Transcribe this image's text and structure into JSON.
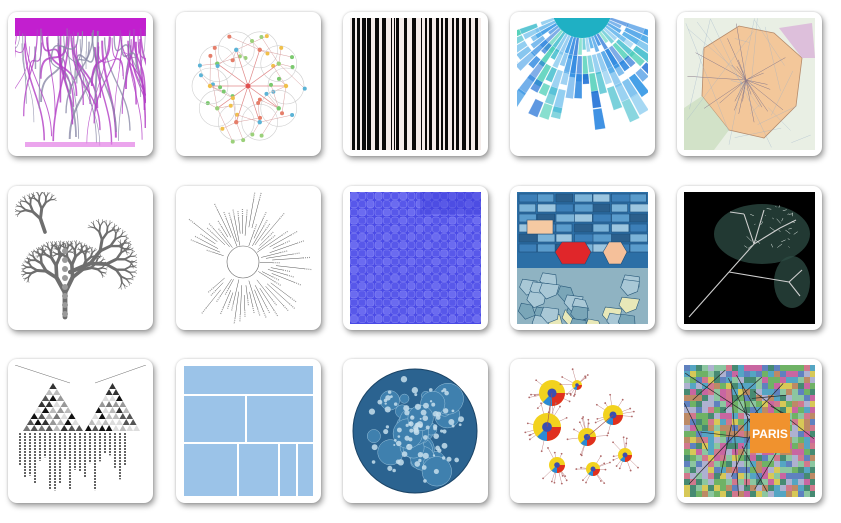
{
  "gallery": {
    "thumbnails": [
      {
        "icon": "stream-tree-icon"
      },
      {
        "icon": "radial-network-icon"
      },
      {
        "icon": "barcode-icon"
      },
      {
        "icon": "sunburst-icon"
      },
      {
        "icon": "voronoi-map-icon"
      },
      {
        "icon": "fractal-tree-icon"
      },
      {
        "icon": "radial-dendrogram-icon"
      },
      {
        "icon": "blue-quilt-icon"
      },
      {
        "icon": "voronoi-treemap-icon"
      },
      {
        "icon": "glowing-tree-icon"
      },
      {
        "icon": "triangle-matrix-icon"
      },
      {
        "icon": "treemap-icon"
      },
      {
        "icon": "circle-packing-icon"
      },
      {
        "icon": "bubble-tree-icon"
      },
      {
        "icon": "patchwork-map-icon"
      }
    ],
    "paris_label": "PARIS"
  }
}
